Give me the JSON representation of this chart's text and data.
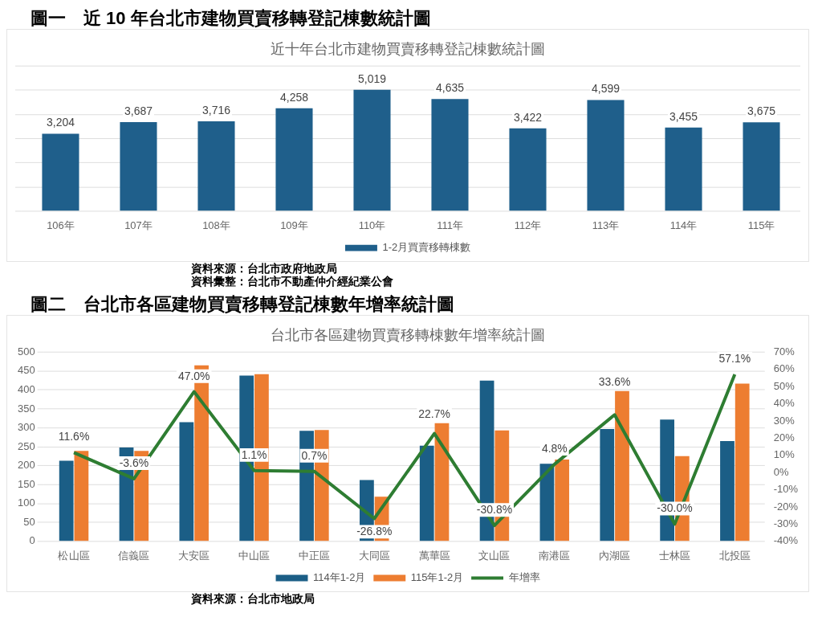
{
  "chart_data": [
    {
      "type": "bar",
      "title": "圖一　近 10 年台北市建物買賣移轉登記棟數統計圖",
      "subtitle": "近十年台北市建物買賣移轉登記棟數統計圖",
      "categories": [
        "106年",
        "107年",
        "108年",
        "109年",
        "110年",
        "111年",
        "112年",
        "113年",
        "114年",
        "115年"
      ],
      "series": [
        {
          "name": "1-2月買賣移轉棟數",
          "color": "#1f5f8b",
          "values": [
            3204,
            3687,
            3716,
            4258,
            5019,
            4635,
            3422,
            4599,
            3455,
            3675
          ],
          "value_labels": [
            "3,204",
            "3,687",
            "3,716",
            "4,258",
            "5,019",
            "4,635",
            "3,422",
            "4,599",
            "3,455",
            "3,675"
          ]
        }
      ],
      "tick_labels": "x",
      "grid": "y",
      "legend": "bottom",
      "annotations": [
        "資料來源：台北市政府地政局",
        "資料彙整：台北市不動產仲介經紀業公會"
      ]
    },
    {
      "type": "bar",
      "title": "圖二　台北市各區建物買賣移轉登記棟數年增率統計圖",
      "subtitle": "台北市各區建物買賣移轉棟數年增率統計圖",
      "categories": [
        "松山區",
        "信義區",
        "大安區",
        "中山區",
        "中正區",
        "大同區",
        "萬華區",
        "文山區",
        "南港區",
        "內湖區",
        "士林區",
        "北投區"
      ],
      "series": [
        {
          "name": "114年1-2月",
          "color": "#1b5e86",
          "values": [
            213,
            248,
            315,
            438,
            292,
            162,
            253,
            425,
            205,
            297,
            322,
            265
          ]
        },
        {
          "name": "115年1-2月",
          "color": "#ed7d31",
          "values": [
            239,
            239,
            465,
            442,
            294,
            118,
            312,
            293,
            216,
            397,
            225,
            417
          ]
        },
        {
          "name": "年增率",
          "type": "line",
          "axis": "y2",
          "color": "#2e7d32",
          "values": [
            11.6,
            -3.6,
            47.0,
            1.1,
            0.7,
            -26.8,
            22.7,
            -30.8,
            4.8,
            33.6,
            -30.0,
            57.1
          ],
          "value_labels": [
            "11.6%",
            "-3.6%",
            "47.0%",
            "1.1%",
            "0.7%",
            "-26.8%",
            "22.7%",
            "-30.8%",
            "4.8%",
            "33.6%",
            "-30.0%",
            "57.1%"
          ]
        }
      ],
      "ylim": [
        0,
        500
      ],
      "yticks": [
        0,
        50,
        100,
        150,
        200,
        250,
        300,
        350,
        400,
        450,
        500
      ],
      "y2lim": [
        -40,
        70
      ],
      "y2ticks": [
        {
          "value": -40,
          "label": "-40%"
        },
        {
          "value": -30,
          "label": "-30%"
        },
        {
          "value": -20,
          "label": "-20%"
        },
        {
          "value": -10,
          "label": "-10%"
        },
        {
          "value": 0,
          "label": "0%"
        },
        {
          "value": 10,
          "label": "10%"
        },
        {
          "value": 20,
          "label": "20%"
        },
        {
          "value": 30,
          "label": "30%"
        },
        {
          "value": 40,
          "label": "40%"
        },
        {
          "value": 50,
          "label": "50%"
        },
        {
          "value": 60,
          "label": "60%"
        },
        {
          "value": 70,
          "label": "70%"
        }
      ],
      "grid": "y",
      "legend": "bottom",
      "marker": "none",
      "annotations": [
        "資料來源：台北市地政局"
      ]
    }
  ]
}
